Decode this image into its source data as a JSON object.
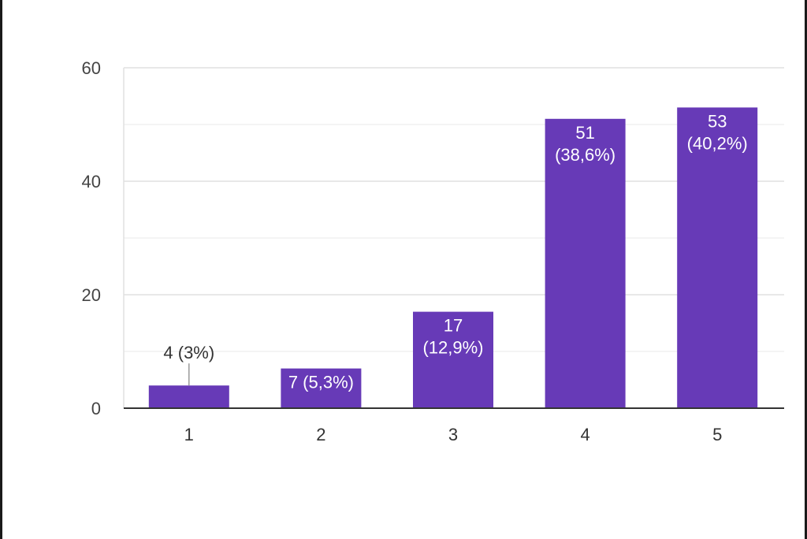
{
  "chart_data": {
    "type": "bar",
    "categories": [
      "1",
      "2",
      "3",
      "4",
      "5"
    ],
    "values": [
      4,
      7,
      17,
      51,
      53
    ],
    "data_labels": [
      "4 (3%)",
      "7 (5,3%)",
      "17\n(12,9%)",
      "51\n(38,6%)",
      "53\n(40,2%)"
    ],
    "ylim": [
      0,
      60
    ],
    "yticks": [
      0,
      20,
      40,
      60
    ],
    "minor_gridlines": [
      10,
      30,
      50
    ],
    "grid": true,
    "bar_color": "#673ab7",
    "title": "",
    "xlabel": "",
    "ylabel": ""
  }
}
